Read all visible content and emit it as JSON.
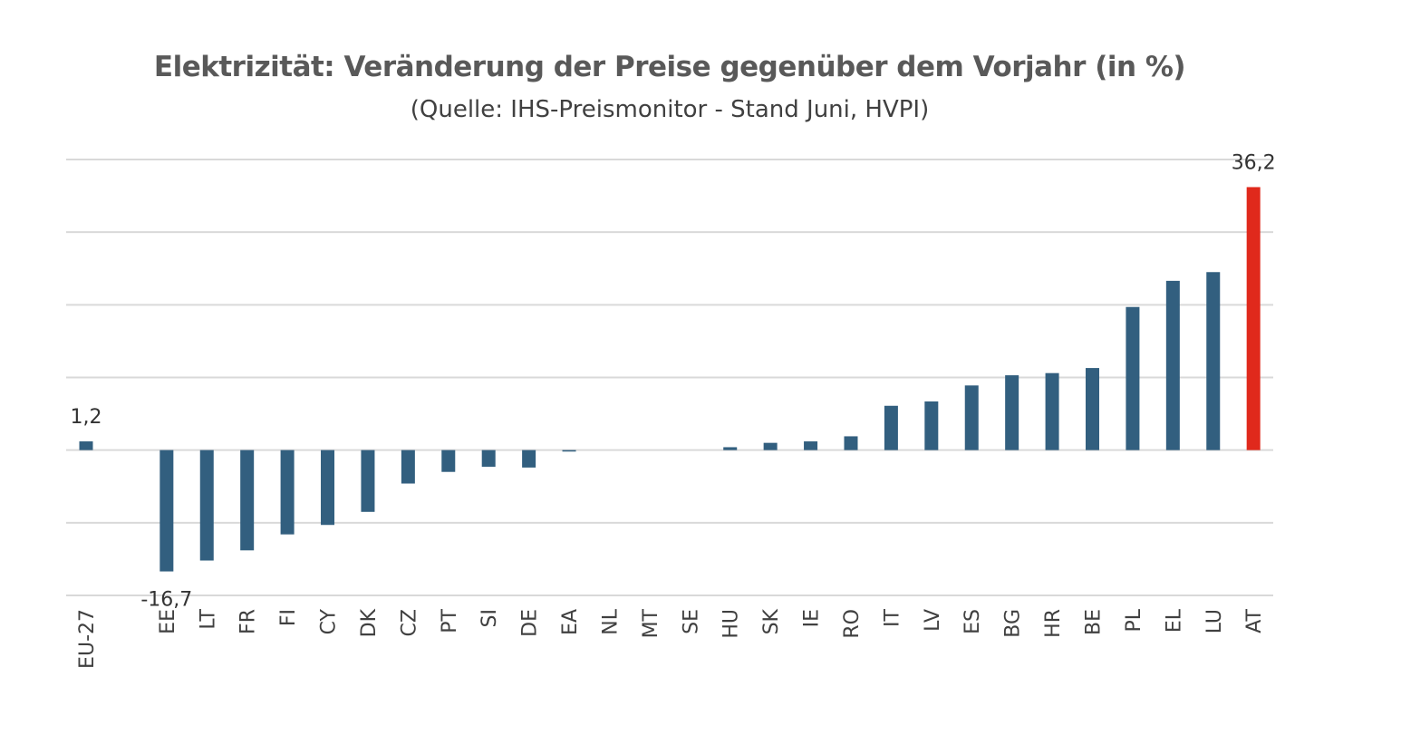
{
  "chart_data": {
    "type": "bar",
    "title": "Elektrizität: Veränderung der Preise gegenüber dem Vorjahr (in %)",
    "subtitle": "(Quelle: IHS-Preismonitor - Stand Juni, HVPI)",
    "categories": [
      "EU-27",
      "",
      "EE",
      "LT",
      "FR",
      "FI",
      "CY",
      "DK",
      "CZ",
      "PT",
      "SI",
      "DE",
      "EA",
      "NL",
      "MT",
      "SE",
      "HU",
      "SK",
      "IE",
      "RO",
      "IT",
      "LV",
      "ES",
      "BG",
      "HR",
      "BE",
      "PL",
      "EL",
      "LU",
      "AT"
    ],
    "values": [
      1.2,
      null,
      -16.7,
      -15.2,
      -13.8,
      -11.6,
      -10.3,
      -8.5,
      -4.6,
      -3.0,
      -2.3,
      -2.4,
      -0.2,
      0.0,
      0.0,
      0.0,
      0.4,
      1.0,
      1.2,
      1.9,
      6.1,
      6.7,
      8.9,
      10.3,
      10.6,
      11.3,
      19.7,
      23.3,
      24.5,
      36.2
    ],
    "data_labels": [
      {
        "category": "EU-27",
        "text": "1,2"
      },
      {
        "category": "EE",
        "text": "-16,7"
      },
      {
        "category": "AT",
        "text": "36,2"
      }
    ],
    "highlight": {
      "category": "AT",
      "color": "#e0291c"
    },
    "bar_color": "#325f7f",
    "gridline_values": [
      -20,
      -10,
      0,
      10,
      20,
      30,
      40
    ],
    "ylim": [
      -20,
      40
    ],
    "grid": true,
    "legend": false
  }
}
